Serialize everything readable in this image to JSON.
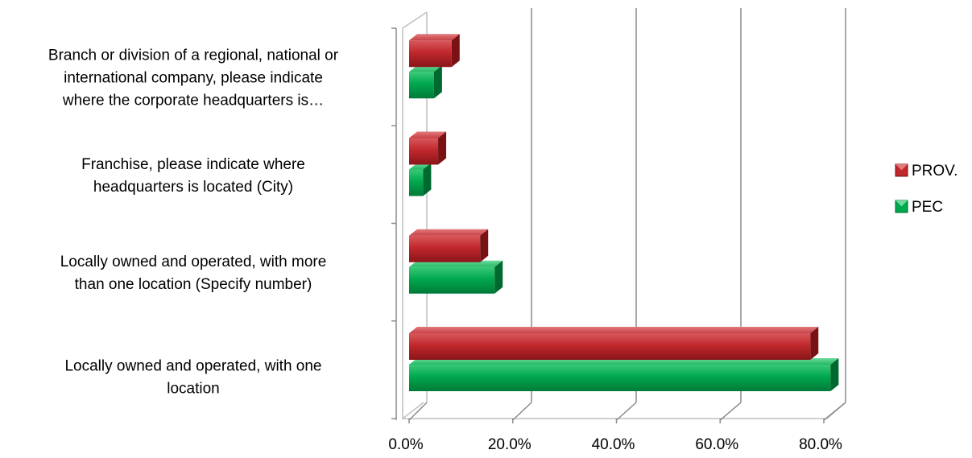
{
  "chart_data": {
    "type": "bar",
    "orientation": "horizontal",
    "style": "3d",
    "categories": [
      [
        "Locally owned and operated, with one",
        "location"
      ],
      [
        "Locally owned and operated, with more",
        "than one location (Specify number)"
      ],
      [
        "Franchise, please indicate where",
        "headquarters is located (City)"
      ],
      [
        "Branch or division of a regional, national or",
        "international company, please indicate",
        "where the corporate headquarters is…"
      ]
    ],
    "series": [
      {
        "name": "PROV.",
        "color": "#c0282d",
        "values": [
          77.4,
          13.7,
          5.6,
          8.2
        ]
      },
      {
        "name": "PEC",
        "color": "#00a84f",
        "values": [
          81.3,
          16.5,
          2.7,
          4.8
        ]
      }
    ],
    "x_ticks": [
      "0.0%",
      "20.0%",
      "40.0%",
      "60.0%",
      "80.0%"
    ],
    "xlim": [
      0,
      80
    ],
    "grid": true,
    "legend": {
      "position": "right",
      "items": [
        "PROV.",
        "PEC"
      ]
    }
  }
}
